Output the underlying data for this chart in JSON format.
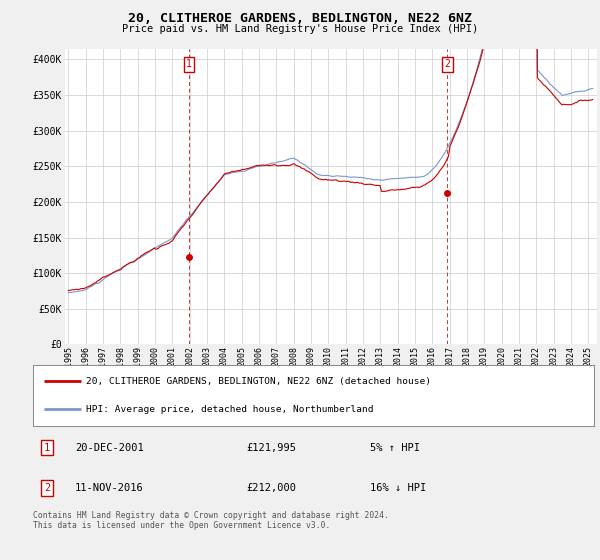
{
  "title": "20, CLITHEROE GARDENS, BEDLINGTON, NE22 6NZ",
  "subtitle": "Price paid vs. HM Land Registry's House Price Index (HPI)",
  "ylabel_ticks": [
    "£0",
    "£50K",
    "£100K",
    "£150K",
    "£200K",
    "£250K",
    "£300K",
    "£350K",
    "£400K"
  ],
  "ytick_values": [
    0,
    50000,
    100000,
    150000,
    200000,
    250000,
    300000,
    350000,
    400000
  ],
  "ylim": [
    0,
    415000
  ],
  "xlim_start": 1994.8,
  "xlim_end": 2025.5,
  "xtick_years": [
    1995,
    1996,
    1997,
    1998,
    1999,
    2000,
    2001,
    2002,
    2003,
    2004,
    2005,
    2006,
    2007,
    2008,
    2009,
    2010,
    2011,
    2012,
    2013,
    2014,
    2015,
    2016,
    2017,
    2018,
    2019,
    2020,
    2021,
    2022,
    2023,
    2024,
    2025
  ],
  "sale1_x": 2001.97,
  "sale1_y": 121995,
  "sale1_label": "1",
  "sale1_date": "20-DEC-2001",
  "sale1_price": "£121,995",
  "sale1_hpi": "5% ↑ HPI",
  "sale2_x": 2016.87,
  "sale2_y": 212000,
  "sale2_label": "2",
  "sale2_date": "11-NOV-2016",
  "sale2_price": "£212,000",
  "sale2_hpi": "16% ↓ HPI",
  "legend_line1": "20, CLITHEROE GARDENS, BEDLINGTON, NE22 6NZ (detached house)",
  "legend_line2": "HPI: Average price, detached house, Northumberland",
  "footer": "Contains HM Land Registry data © Crown copyright and database right 2024.\nThis data is licensed under the Open Government Licence v3.0.",
  "bg_color": "#f0f0f0",
  "plot_bg_color": "#ffffff",
  "grid_color": "#cccccc",
  "red_line_color": "#cc0000",
  "blue_line_color": "#7799cc",
  "sale_marker_color": "#cc0000",
  "vline_color": "#cc0000",
  "box_color": "#cc0000",
  "title_fontsize": 9.5,
  "subtitle_fontsize": 7.5,
  "ytick_fontsize": 7,
  "xtick_fontsize": 6,
  "legend_fontsize": 6.8,
  "info_fontsize": 7.5,
  "footer_fontsize": 5.8
}
